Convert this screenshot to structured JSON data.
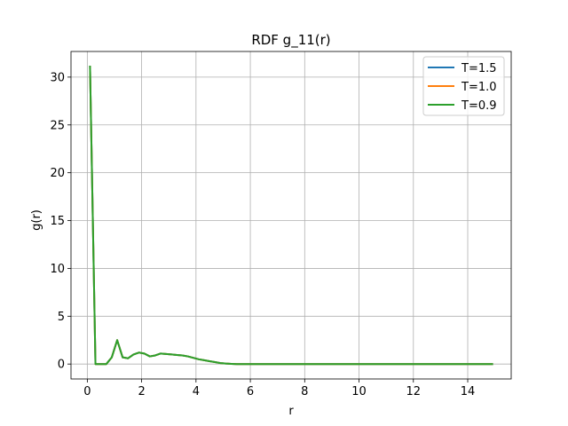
{
  "chart_data": {
    "type": "line",
    "title": "RDF g_11(r)",
    "xlabel": "r",
    "ylabel": "g(r)",
    "xlim": [
      -0.6,
      15.6
    ],
    "ylim": [
      -1.56,
      32.68
    ],
    "xticks": [
      0,
      2,
      4,
      6,
      8,
      10,
      12,
      14
    ],
    "yticks": [
      0,
      5,
      10,
      15,
      20,
      25,
      30
    ],
    "grid": true,
    "legend_position": "top-right",
    "x": [
      0.1,
      0.3,
      0.5,
      0.7,
      0.9,
      1.1,
      1.3,
      1.5,
      1.7,
      1.9,
      2.1,
      2.3,
      2.5,
      2.7,
      2.9,
      3.1,
      3.3,
      3.5,
      3.7,
      3.9,
      4.1,
      4.3,
      4.5,
      4.7,
      4.9,
      5.1,
      5.3,
      5.5,
      5.7,
      5.9,
      6.5,
      7.5,
      8.5,
      9.5,
      10.5,
      11.5,
      12.5,
      13.5,
      14.5,
      14.9
    ],
    "series": [
      {
        "name": "T=1.5",
        "color": "#1f77b4",
        "values": [
          31.1,
          0.0,
          0.0,
          0.0,
          0.7,
          2.5,
          0.7,
          0.6,
          1.0,
          1.2,
          1.1,
          0.8,
          0.9,
          1.1,
          1.05,
          1.0,
          0.95,
          0.9,
          0.8,
          0.65,
          0.5,
          0.4,
          0.3,
          0.2,
          0.1,
          0.05,
          0.02,
          0.0,
          0.0,
          0.0,
          0.0,
          0.0,
          0.0,
          0.0,
          0.0,
          0.0,
          0.0,
          0.0,
          0.0,
          0.0
        ]
      },
      {
        "name": "T=1.0",
        "color": "#ff7f0e",
        "values": [
          31.1,
          0.0,
          0.0,
          0.0,
          0.7,
          2.5,
          0.7,
          0.6,
          1.0,
          1.2,
          1.1,
          0.8,
          0.9,
          1.1,
          1.05,
          1.0,
          0.95,
          0.9,
          0.8,
          0.65,
          0.5,
          0.4,
          0.3,
          0.2,
          0.1,
          0.05,
          0.02,
          0.0,
          0.0,
          0.0,
          0.0,
          0.0,
          0.0,
          0.0,
          0.0,
          0.0,
          0.0,
          0.0,
          0.0,
          0.0
        ]
      },
      {
        "name": "T=0.9",
        "color": "#2ca02c",
        "values": [
          31.1,
          0.0,
          0.0,
          0.0,
          0.7,
          2.5,
          0.7,
          0.6,
          1.0,
          1.2,
          1.1,
          0.8,
          0.9,
          1.1,
          1.05,
          1.0,
          0.95,
          0.9,
          0.8,
          0.65,
          0.5,
          0.4,
          0.3,
          0.2,
          0.1,
          0.05,
          0.02,
          0.0,
          0.0,
          0.0,
          0.0,
          0.0,
          0.0,
          0.0,
          0.0,
          0.0,
          0.0,
          0.0,
          0.0,
          0.0
        ]
      }
    ]
  }
}
